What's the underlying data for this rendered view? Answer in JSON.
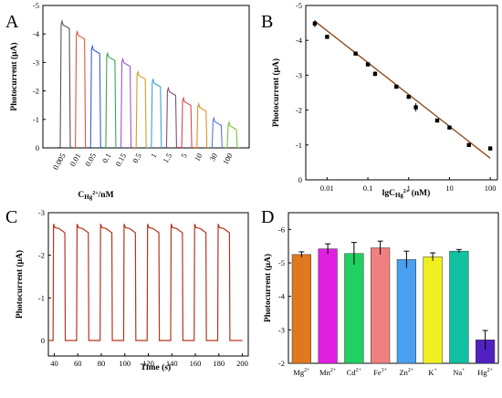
{
  "chart_data": [
    {
      "panel": "A",
      "type": "line",
      "ylabel": "Photocurrent (μA)",
      "xlabel": "C_Hg2+/nM",
      "ylim": [
        0,
        -5
      ],
      "yticks": [
        "0",
        "-1",
        "-2",
        "-3",
        "-4",
        "-5"
      ],
      "categories": [
        "0.005",
        "0.01",
        "0.05",
        "0.1",
        "0.15",
        "0.5",
        "1",
        "1.5",
        "5",
        "10",
        "30",
        "100"
      ],
      "values": [
        -4.45,
        -4.08,
        -3.57,
        -3.32,
        -3.12,
        -2.67,
        -2.4,
        -2.1,
        -1.75,
        -1.55,
        -1.05,
        -0.9
      ],
      "colors": [
        "#555555",
        "#d85b3a",
        "#3a5fd8",
        "#3aa850",
        "#9b56d6",
        "#d1a020",
        "#3aa0d8",
        "#8b4a80",
        "#d84a4a",
        "#e0902a",
        "#5a7ad8",
        "#7ac03a"
      ]
    },
    {
      "panel": "B",
      "type": "scatter",
      "ylabel": "Photocurrent (μA)",
      "xlabel": "lgC_Hg2+ (nM)",
      "xscale": "log",
      "xlim": [
        0.003,
        150
      ],
      "ylim": [
        0,
        -5
      ],
      "xticks": [
        "0.01",
        "0.1",
        "1",
        "10",
        "100"
      ],
      "yticks": [
        "0",
        "-1",
        "-2",
        "-3",
        "-4",
        "-5"
      ],
      "x": [
        0.005,
        0.01,
        0.05,
        0.1,
        0.15,
        0.5,
        1,
        1.5,
        5,
        10,
        30,
        100
      ],
      "y": [
        -4.48,
        -4.1,
        -3.62,
        -3.31,
        -3.04,
        -2.67,
        -2.38,
        -2.08,
        -1.7,
        -1.5,
        -1.0,
        -0.9
      ],
      "errors": [
        0.1,
        0.04,
        0.03,
        0.04,
        0.07,
        0.03,
        0.03,
        0.12,
        0.03,
        0.04,
        0.03,
        0.06
      ],
      "fit": {
        "x": [
          0.005,
          100
        ],
        "y": [
          -4.55,
          -0.62
        ],
        "color": "#8b4513"
      }
    },
    {
      "panel": "C",
      "type": "line",
      "ylabel": "Photocurrent (μA)",
      "xlabel": "Time (s)",
      "xlim": [
        35,
        205
      ],
      "ylim": [
        0,
        -3
      ],
      "xticks": [
        "40",
        "60",
        "80",
        "100",
        "120",
        "140",
        "160",
        "180",
        "200"
      ],
      "yticks": [
        "0",
        "-1",
        "-2",
        "-3"
      ],
      "pulses": [
        [
          39,
          49
        ],
        [
          59,
          69
        ],
        [
          79,
          89
        ],
        [
          99,
          109
        ],
        [
          119,
          129
        ],
        [
          139,
          149
        ],
        [
          159,
          169
        ],
        [
          179,
          189
        ]
      ],
      "on_level": -2.65,
      "color": "#b4361e"
    },
    {
      "panel": "D",
      "type": "bar",
      "ylabel": "Photocurrent (μA)",
      "ylim": [
        -2,
        -6.5
      ],
      "yticks": [
        "-2",
        "-3",
        "-4",
        "-5",
        "-6"
      ],
      "categories": [
        "Mg2+",
        "Mn2+",
        "Cd2+",
        "Fe3+",
        "Zn2+",
        "K+",
        "Na+",
        "Hg2+"
      ],
      "category_labels": [
        {
          "base": "Mg",
          "sup": "2+"
        },
        {
          "base": "Mn",
          "sup": "2+"
        },
        {
          "base": "Cd",
          "sup": "2+"
        },
        {
          "base": "Fe",
          "sup": "3+"
        },
        {
          "base": "Zn",
          "sup": "2+"
        },
        {
          "base": "K",
          "sup": "+"
        },
        {
          "base": "Na",
          "sup": "+"
        },
        {
          "base": "Hg",
          "sup": "2+"
        }
      ],
      "values": [
        -5.25,
        -5.42,
        -5.28,
        -5.45,
        -5.1,
        -5.18,
        -5.35,
        -2.7
      ],
      "errors": [
        0.08,
        0.15,
        0.33,
        0.2,
        0.25,
        0.12,
        0.05,
        0.28
      ],
      "colors": [
        "#e07820",
        "#e020e0",
        "#20d060",
        "#f08080",
        "#4aa0f0",
        "#f0f020",
        "#10c0a0",
        "#5020c0"
      ]
    }
  ]
}
